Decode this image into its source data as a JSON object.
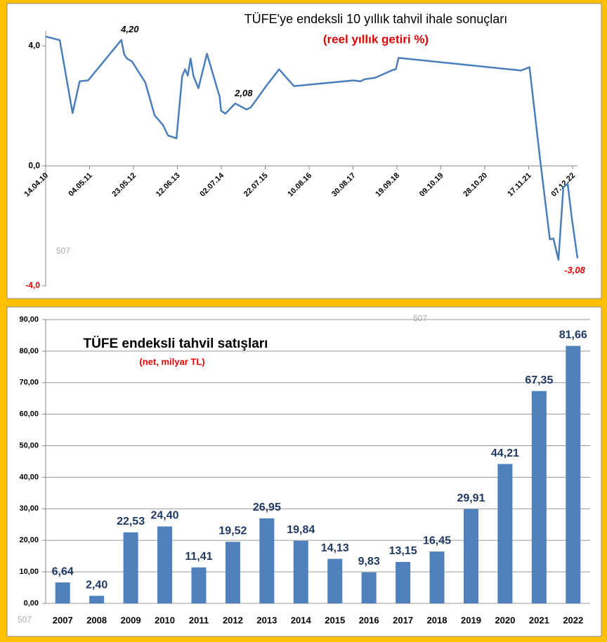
{
  "chart_data": [
    {
      "type": "line",
      "title": "TÜFE'ye endeksli 10 yıllık tahvil ihale sonuçları",
      "subtitle": "(reel yıllık getiri %)",
      "watermark": "507",
      "color": "#4a7ebb",
      "x": [
        "14.04.10",
        "16.08.10",
        "06.12.10",
        "06.02.11",
        "21.04.11",
        "07.02.12",
        "02.03.12",
        "27.03.12",
        "10.05.12",
        "04.09.12",
        "24.11.12",
        "06.02.13",
        "22.03.13",
        "04.06.13",
        "24.07.13",
        "18.08.13",
        "11.09.13",
        "06.10.13",
        "31.10.13",
        "13.12.13",
        "26.02.14",
        "29.04.14",
        "17.06.14",
        "30.06.14",
        "06.08.14",
        "01.11.14",
        "08.02.15",
        "17.03.15",
        "12.05.15",
        "26.07.15",
        "20.11.15",
        "30.03.16",
        "01.09.17",
        "03.11.17",
        "10.12.17",
        "13.03.18",
        "15.08.18",
        "09.09.18",
        "03.10.18",
        "10.09.21",
        "24.11.21",
        "25.02.22",
        "22.05.22",
        "22.06.22",
        "05.08.22",
        "17.09.22",
        "25.10.22",
        "01.12.22",
        "19.01.23"
      ],
      "values": [
        4.31,
        4.19,
        1.76,
        2.82,
        2.85,
        4.2,
        3.72,
        3.58,
        3.48,
        2.78,
        1.69,
        1.36,
        1.01,
        0.92,
        2.99,
        3.22,
        3.01,
        3.58,
        2.99,
        2.59,
        3.74,
        2.94,
        2.31,
        1.84,
        1.74,
        2.08,
        1.88,
        1.95,
        2.24,
        2.64,
        3.22,
        2.66,
        2.85,
        2.82,
        2.89,
        2.94,
        3.2,
        3.22,
        3.6,
        3.18,
        3.29,
        0.21,
        -2.45,
        -2.42,
        -3.13,
        -0.71,
        -0.59,
        -1.76,
        -3.08
      ],
      "value_labels": [
        null,
        null,
        null,
        null,
        null,
        "4,20",
        null,
        null,
        null,
        null,
        null,
        null,
        null,
        null,
        null,
        null,
        null,
        null,
        null,
        null,
        null,
        null,
        null,
        null,
        null,
        "2,08",
        null,
        null,
        null,
        null,
        null,
        null,
        null,
        null,
        null,
        null,
        null,
        null,
        null,
        null,
        null,
        null,
        null,
        null,
        null,
        null,
        null,
        null,
        "-3,08"
      ],
      "xlim": [
        "14.04.10",
        "19.01.23"
      ],
      "xticks": [
        "14.04.10",
        "04.05.11",
        "23.05.12",
        "12.06.13",
        "02.07.14",
        "22.07.15",
        "10.08.16",
        "30.08.17",
        "19.09.18",
        "09.10.19",
        "28.10.20",
        "17.11.21",
        "07.12.22"
      ],
      "ylim": [
        -4,
        4.5
      ],
      "yticks": [
        {
          "value": -4,
          "label": "-4,0"
        },
        {
          "value": 0,
          "label": "0,0"
        },
        {
          "value": 4,
          "label": "4,0"
        }
      ]
    },
    {
      "type": "bar",
      "title": "TÜFE endeksli tahvil satışları",
      "subtitle": "(net, milyar TL)",
      "watermark": "507",
      "color": "#4f81bd",
      "grid": true,
      "categories": [
        "2007",
        "2008",
        "2009",
        "2010",
        "2011",
        "2012",
        "2013",
        "2014",
        "2015",
        "2016",
        "2017",
        "2018",
        "2019",
        "2020",
        "2021",
        "2022"
      ],
      "values": [
        6.64,
        2.4,
        22.53,
        24.4,
        11.41,
        19.52,
        26.95,
        19.84,
        14.13,
        9.83,
        13.15,
        16.45,
        29.91,
        44.21,
        67.35,
        81.66
      ],
      "value_labels": [
        "6,64",
        "2,40",
        "22,53",
        "24,40",
        "11,41",
        "19,52",
        "26,95",
        "19,84",
        "14,13",
        "9,83",
        "13,15",
        "16,45",
        "29,91",
        "44,21",
        "67,35",
        "81,66"
      ],
      "ylim": [
        0,
        90
      ],
      "yticks": [
        {
          "value": 0,
          "label": "0,00"
        },
        {
          "value": 10,
          "label": "10,00"
        },
        {
          "value": 20,
          "label": "20,00"
        },
        {
          "value": 30,
          "label": "30,00"
        },
        {
          "value": 40,
          "label": "40,00"
        },
        {
          "value": 50,
          "label": "50,00"
        },
        {
          "value": 60,
          "label": "60,00"
        },
        {
          "value": 70,
          "label": "70,00"
        },
        {
          "value": 80,
          "label": "80,00"
        },
        {
          "value": 90,
          "label": "90,00"
        }
      ]
    }
  ]
}
